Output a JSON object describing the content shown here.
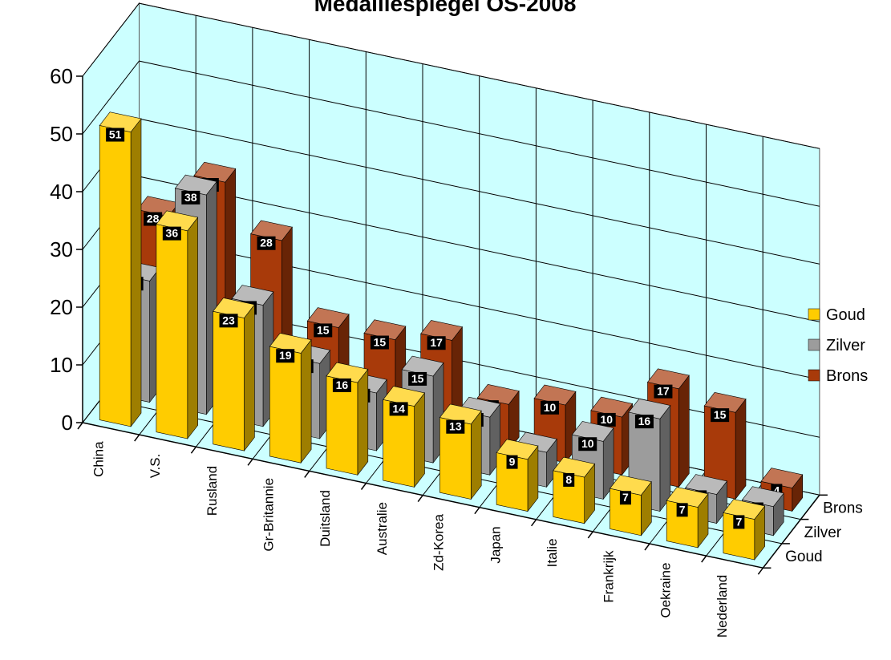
{
  "chart_data": {
    "type": "bar",
    "title": "Medaillespiegel OS-2008",
    "categories": [
      "China",
      "V.S.",
      "Rusland",
      "Gr-Britannie",
      "Duitsland",
      "Australie",
      "Zd-Korea",
      "Japan",
      "Italie",
      "Frankrijk",
      "Oekraine",
      "Nederland"
    ],
    "series": [
      {
        "name": "Goud",
        "color": "#ffcc00",
        "values": [
          51,
          36,
          23,
          19,
          16,
          14,
          13,
          9,
          8,
          7,
          7,
          7
        ]
      },
      {
        "name": "Zilver",
        "color": "#9c9c9c",
        "values": [
          21,
          38,
          21,
          13,
          10,
          15,
          10,
          6,
          10,
          16,
          5,
          5
        ]
      },
      {
        "name": "Brons",
        "color": "#a83a0a",
        "values": [
          28,
          36,
          28,
          15,
          15,
          17,
          8,
          10,
          10,
          17,
          15,
          4
        ]
      }
    ],
    "depth_labels": [
      "Goud",
      "Zilver",
      "Brons"
    ],
    "ylim": [
      0,
      60
    ],
    "yticks": [
      0,
      10,
      20,
      30,
      40,
      50,
      60
    ],
    "grid": true,
    "legend_position": "right",
    "wall_color": "#ccffff"
  }
}
